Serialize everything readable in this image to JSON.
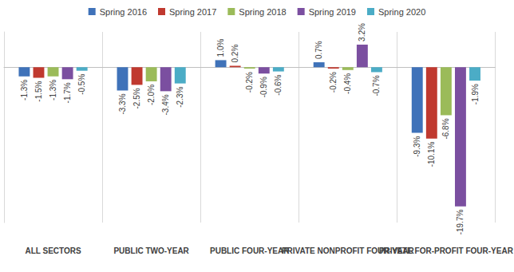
{
  "chart_data": {
    "type": "bar",
    "categories": [
      "ALL SECTORS",
      "PUBLIC TWO-YEAR",
      "PUBLIC FOUR-YEAR",
      "PRIVATE NONPROFIT FOUR-YEAR",
      "PRIVATE FOR-PROFIT FOUR-YEAR"
    ],
    "series": [
      {
        "name": "Spring 2016",
        "color": "#3f72b9",
        "values": [
          -1.3,
          -3.3,
          1.0,
          0.7,
          -9.3
        ],
        "value_labels": [
          "-1.3%",
          "-3.3%",
          "1.0%",
          "0.7%",
          "-9.3%"
        ]
      },
      {
        "name": "Spring 2017",
        "color": "#c0392f",
        "values": [
          -1.5,
          -2.5,
          0.2,
          -0.2,
          -10.1
        ],
        "value_labels": [
          "-1.5%",
          "-2.5%",
          "0.2%",
          "-0.2%",
          "-10.1%"
        ]
      },
      {
        "name": "Spring 2018",
        "color": "#9bbb59",
        "values": [
          -1.3,
          -2.0,
          -0.2,
          -0.4,
          -6.8
        ],
        "value_labels": [
          "-1.3%",
          "-2.0%",
          "-0.2%",
          "-0.4%",
          "-6.8%"
        ]
      },
      {
        "name": "Spring 2019",
        "color": "#7b4fa0",
        "values": [
          -1.7,
          -3.4,
          -0.9,
          3.2,
          -19.7
        ],
        "value_labels": [
          "-1.7%",
          "-3.4%",
          "-0.9%",
          "3.2%",
          "-19.7%"
        ]
      },
      {
        "name": "Spring 2020",
        "color": "#4bacc6",
        "values": [
          -0.5,
          -2.3,
          -0.6,
          -0.7,
          -1.9
        ],
        "value_labels": [
          "-0.5%",
          "-2.3%",
          "-0.6%",
          "-0.7%",
          "-1.9%"
        ]
      }
    ],
    "ylim": [
      -22,
      5
    ],
    "grid": false,
    "legend": "top",
    "data_labels": true,
    "tick_labels": "x"
  }
}
